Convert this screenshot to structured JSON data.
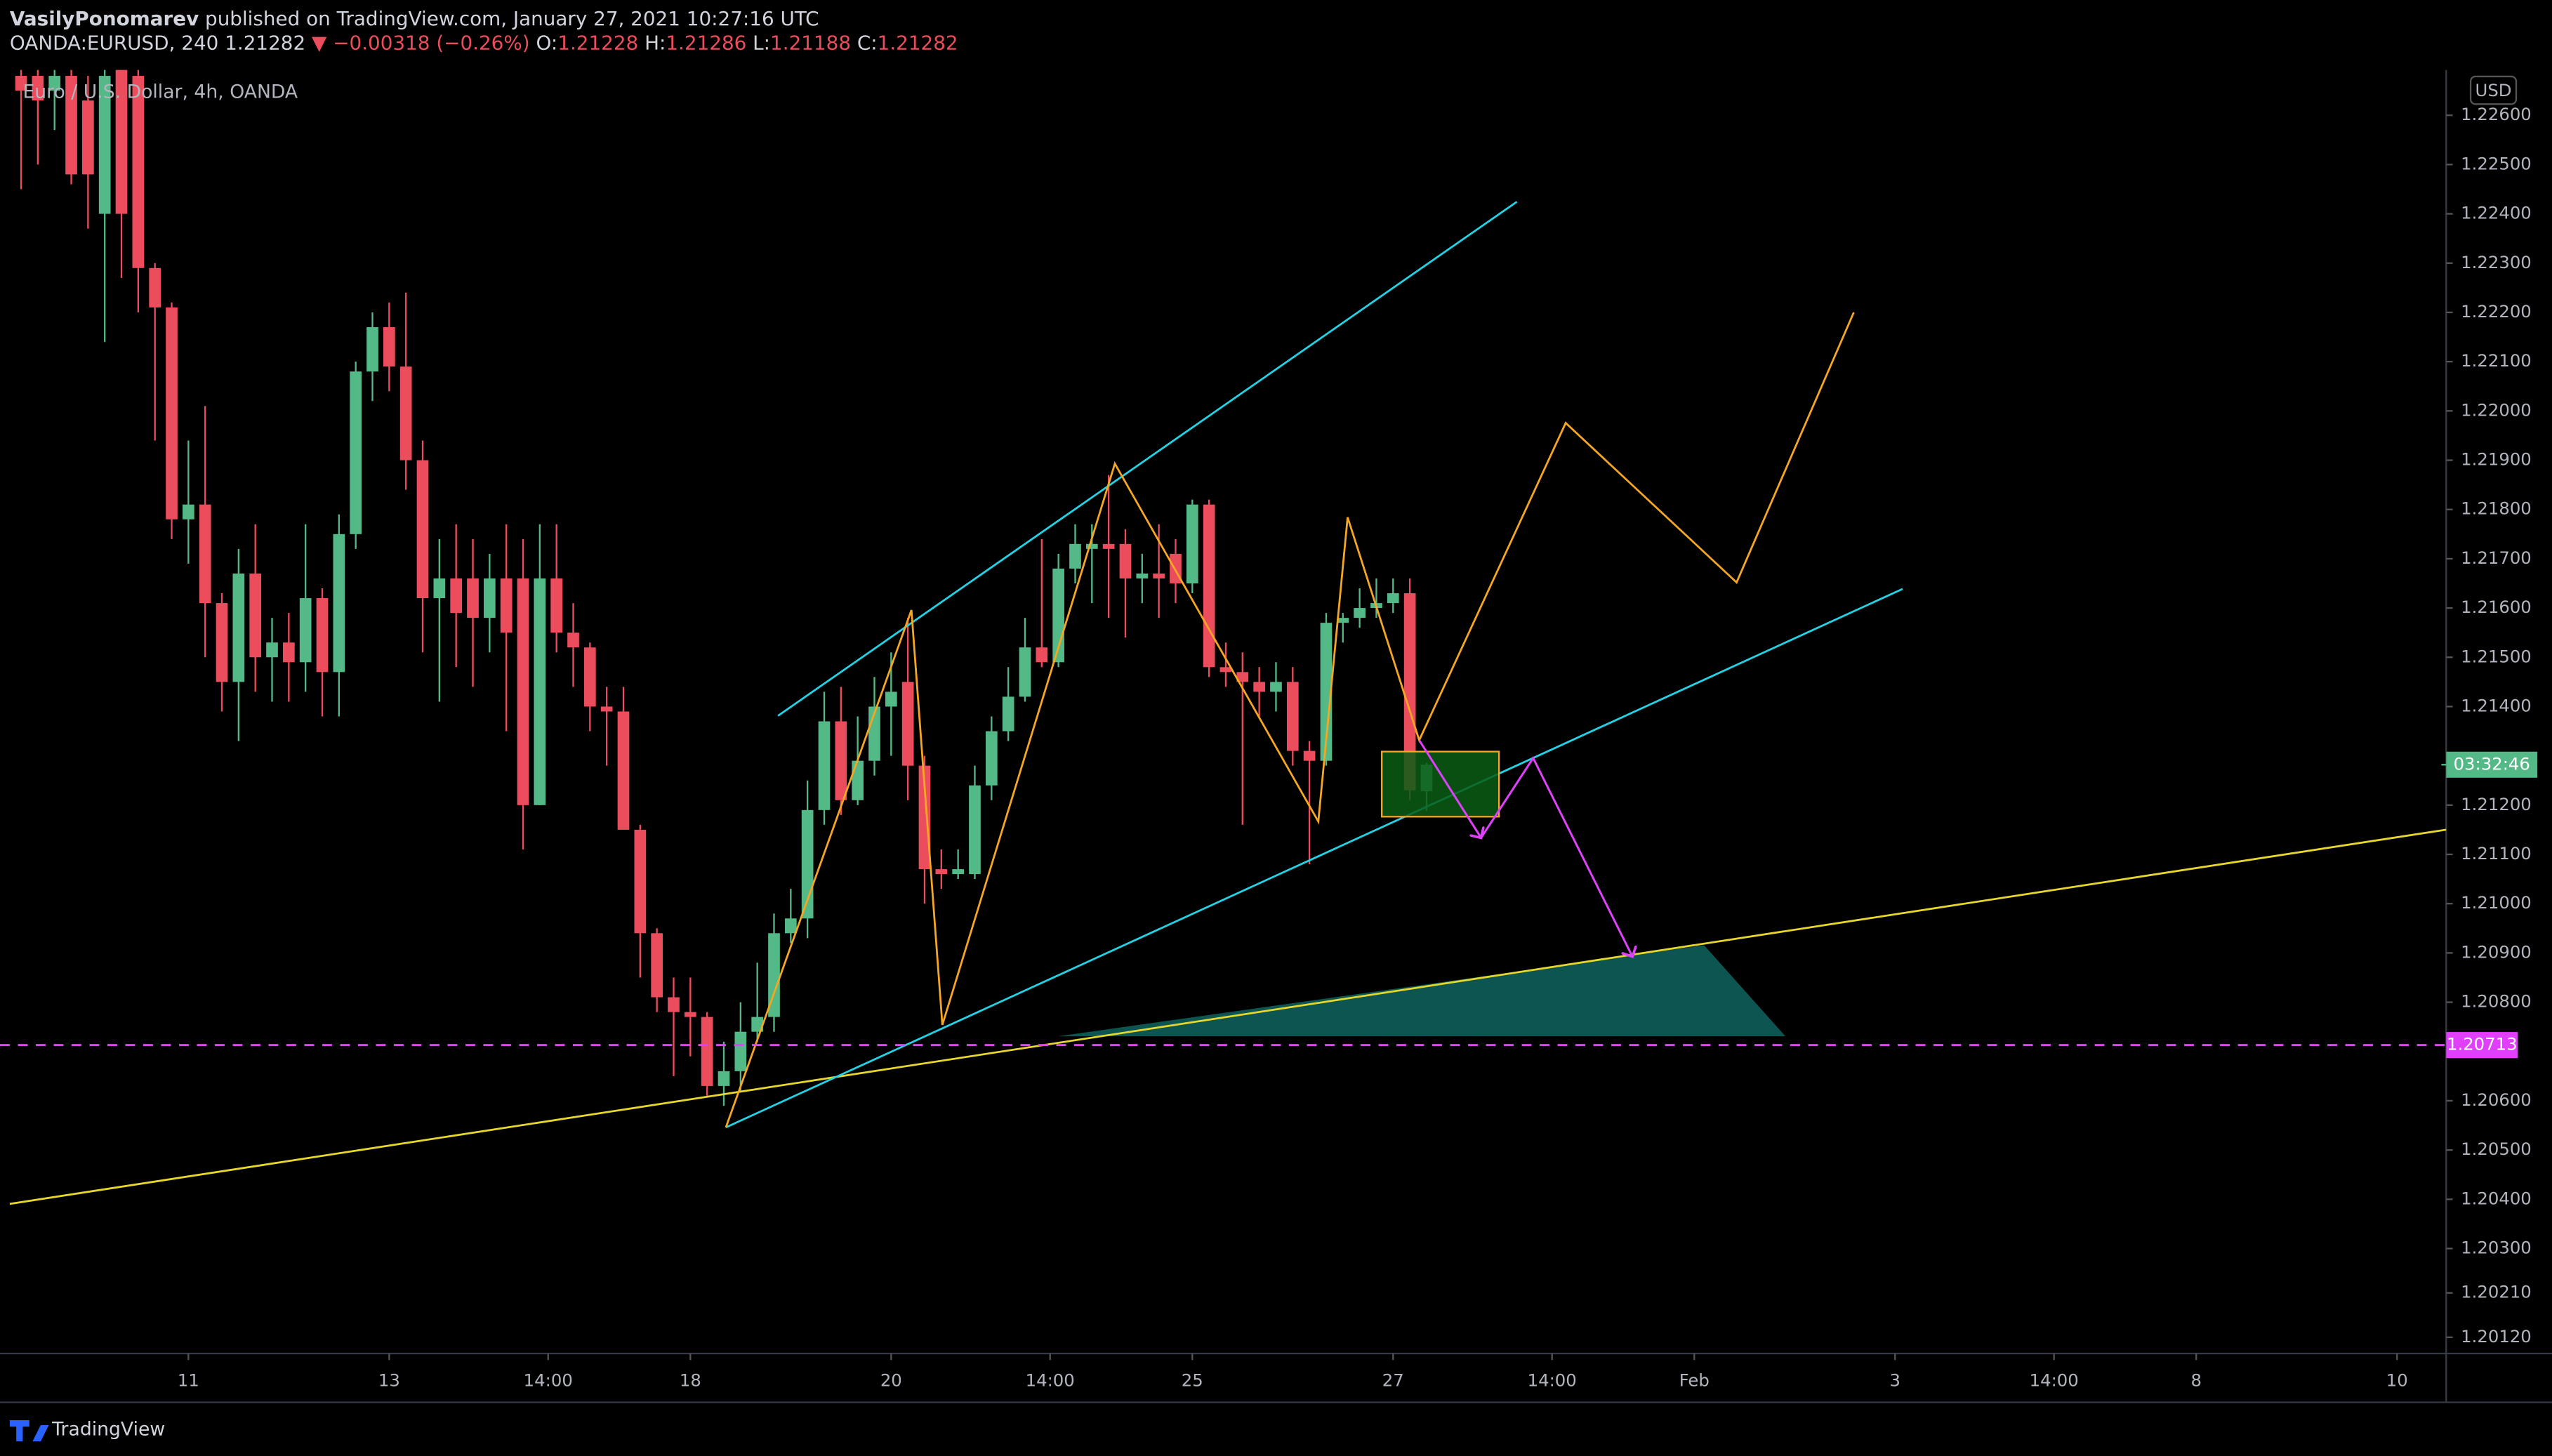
{
  "header": {
    "author": "VasilyPonomarev",
    "published": "published on TradingView.com, January 27, 2021 10:27:16 UTC",
    "symbol": "OANDA:EURUSD, 240",
    "last": 1.21282,
    "change": "▼ −0.00318 (−0.26%)",
    "ohlc_labels": [
      "O:",
      "H:",
      "L:",
      "C:"
    ],
    "ohlc_values": [
      1.21228,
      1.21286,
      1.21188,
      1.21282
    ]
  },
  "footer": {
    "brand": "TradingView"
  },
  "chart_data": {
    "type": "candlestick",
    "title": "Euro / U.S. Dollar, 4h, OANDA",
    "currency": "USD",
    "up_color": "#53b987",
    "down_color": "#eb4d5c",
    "grid": false,
    "open": [
      1.2268,
      1.2268,
      1.2265,
      1.2268,
      1.2263,
      1.224,
      1.227,
      1.2268,
      1.2229,
      1.2221,
      1.2178,
      1.2181,
      1.2161,
      1.2145,
      1.2167,
      1.215,
      1.2153,
      1.2149,
      1.2162,
      1.2147,
      1.2175,
      1.2208,
      1.2217,
      1.2209,
      1.219,
      1.2162,
      1.2166,
      1.2166,
      1.2158,
      1.2166,
      1.2166,
      1.212,
      1.2166,
      1.2155,
      1.2152,
      1.214,
      1.2139,
      1.2115,
      1.2094,
      1.2081,
      1.2078,
      1.2077,
      1.2063,
      1.2066,
      1.2074,
      1.2077,
      1.2094,
      1.2097,
      1.2119,
      1.2137,
      1.2121,
      1.2129,
      1.214,
      1.2145,
      1.2128,
      1.2107,
      1.2106,
      1.2106,
      1.2124,
      1.2135,
      1.2142,
      1.2152,
      1.2149,
      1.2168,
      1.2172,
      1.2173,
      1.2173,
      1.2166,
      1.2167,
      1.2171,
      1.2165,
      1.2181,
      1.2148,
      1.2147,
      1.2145,
      1.2143,
      1.2145,
      1.2131,
      1.2129,
      1.2157,
      1.2158,
      1.216,
      1.2161,
      1.2163,
      1.21228
    ],
    "high": [
      1.227,
      1.227,
      1.227,
      1.227,
      1.2268,
      1.227,
      1.2272,
      1.227,
      1.223,
      1.2222,
      1.2194,
      1.2201,
      1.2163,
      1.2172,
      1.2177,
      1.2158,
      1.2159,
      1.2177,
      1.2164,
      1.2179,
      1.221,
      1.222,
      1.2222,
      1.2224,
      1.2194,
      1.2174,
      1.2177,
      1.2174,
      1.2171,
      1.2177,
      1.2174,
      1.2177,
      1.2177,
      1.2161,
      1.2153,
      1.2144,
      1.2144,
      1.2116,
      1.2095,
      1.2085,
      1.2085,
      1.2078,
      1.2072,
      1.208,
      1.2088,
      1.2098,
      1.2103,
      1.2125,
      1.2143,
      1.2144,
      1.2138,
      1.2146,
      1.2151,
      1.2158,
      1.213,
      1.2111,
      1.2111,
      1.2128,
      1.2138,
      1.2148,
      1.2158,
      1.2174,
      1.2171,
      1.2177,
      1.2177,
      1.2187,
      1.2176,
      1.2171,
      1.2177,
      1.2174,
      1.2182,
      1.2182,
      1.2153,
      1.2151,
      1.2148,
      1.2149,
      1.2148,
      1.2133,
      1.2159,
      1.2159,
      1.2164,
      1.2166,
      1.2166,
      1.2166,
      1.21286
    ],
    "low": [
      1.2245,
      1.225,
      1.2257,
      1.2246,
      1.2237,
      1.2214,
      1.2227,
      1.222,
      1.2194,
      1.2174,
      1.2169,
      1.215,
      1.2139,
      1.2133,
      1.2143,
      1.2141,
      1.2141,
      1.2143,
      1.2138,
      1.2138,
      1.2172,
      1.2202,
      1.2204,
      1.2184,
      1.2151,
      1.2141,
      1.2148,
      1.2144,
      1.2151,
      1.2135,
      1.2111,
      1.212,
      1.2151,
      1.2144,
      1.2135,
      1.2128,
      1.2115,
      1.2085,
      1.2078,
      1.2065,
      1.2069,
      1.2061,
      1.2059,
      1.2062,
      1.2072,
      1.2074,
      1.2092,
      1.2093,
      1.2116,
      1.2118,
      1.212,
      1.2126,
      1.213,
      1.2121,
      1.21,
      1.2103,
      1.2105,
      1.2105,
      1.2121,
      1.2133,
      1.2141,
      1.2148,
      1.2148,
      1.2165,
      1.2161,
      1.2158,
      1.2154,
      1.2161,
      1.2158,
      1.2161,
      1.2163,
      1.2146,
      1.2144,
      1.2116,
      1.2138,
      1.2139,
      1.2128,
      1.2108,
      1.2128,
      1.2153,
      1.2156,
      1.2158,
      1.2159,
      1.2121,
      1.21188
    ],
    "close": [
      1.2265,
      1.2263,
      1.2268,
      1.2248,
      1.2248,
      1.2268,
      1.224,
      1.2229,
      1.2221,
      1.2178,
      1.2181,
      1.2161,
      1.2145,
      1.2167,
      1.215,
      1.2153,
      1.2149,
      1.2162,
      1.2147,
      1.2175,
      1.2208,
      1.2217,
      1.2209,
      1.219,
      1.2162,
      1.2166,
      1.2159,
      1.2158,
      1.2166,
      1.2155,
      1.212,
      1.2166,
      1.2155,
      1.2152,
      1.214,
      1.2139,
      1.2115,
      1.2094,
      1.2081,
      1.2078,
      1.2077,
      1.2063,
      1.2066,
      1.2074,
      1.2077,
      1.2094,
      1.2097,
      1.2119,
      1.2137,
      1.2121,
      1.2129,
      1.214,
      1.2143,
      1.2128,
      1.2107,
      1.2106,
      1.2107,
      1.2124,
      1.2135,
      1.2142,
      1.2152,
      1.2149,
      1.2168,
      1.2173,
      1.2173,
      1.2172,
      1.2166,
      1.2167,
      1.2166,
      1.2165,
      1.2181,
      1.2148,
      1.2147,
      1.2145,
      1.2143,
      1.2145,
      1.2131,
      1.2129,
      1.2157,
      1.2158,
      1.216,
      1.2161,
      1.2163,
      1.2123,
      1.21282
    ],
    "xlim": [
      -1.26,
      144.94
    ],
    "xticks": [
      {
        "value": 10,
        "label": "11"
      },
      {
        "value": 22,
        "label": "13"
      },
      {
        "value": 31.5,
        "label": "14:00"
      },
      {
        "value": 40,
        "label": "18"
      },
      {
        "value": 52,
        "label": "20"
      },
      {
        "value": 61.5,
        "label": "14:00"
      },
      {
        "value": 70,
        "label": "25"
      },
      {
        "value": 82,
        "label": "27"
      },
      {
        "value": 91.5,
        "label": "14:00"
      },
      {
        "value": 100,
        "label": "Feb"
      },
      {
        "value": 112,
        "label": "3"
      },
      {
        "value": 121.5,
        "label": "14:00"
      },
      {
        "value": 130,
        "label": "8"
      },
      {
        "value": 142,
        "label": "10"
      }
    ],
    "ylim": [
      1.20087,
      1.22692
    ],
    "yticks": [
      {
        "value": 1.226,
        "label": "1.22600"
      },
      {
        "value": 1.225,
        "label": "1.22500"
      },
      {
        "value": 1.224,
        "label": "1.22400"
      },
      {
        "value": 1.223,
        "label": "1.22300"
      },
      {
        "value": 1.222,
        "label": "1.22200"
      },
      {
        "value": 1.221,
        "label": "1.22100"
      },
      {
        "value": 1.22,
        "label": "1.22000"
      },
      {
        "value": 1.219,
        "label": "1.21900"
      },
      {
        "value": 1.218,
        "label": "1.21800"
      },
      {
        "value": 1.217,
        "label": "1.21700"
      },
      {
        "value": 1.216,
        "label": "1.21600"
      },
      {
        "value": 1.215,
        "label": "1.21500"
      },
      {
        "value": 1.214,
        "label": "1.21400"
      },
      {
        "value": 1.212,
        "label": "1.21200"
      },
      {
        "value": 1.211,
        "label": "1.21100"
      },
      {
        "value": 1.21,
        "label": "1.21000"
      },
      {
        "value": 1.209,
        "label": "1.20900"
      },
      {
        "value": 1.208,
        "label": "1.20800"
      },
      {
        "value": 1.206,
        "label": "1.20600"
      },
      {
        "value": 1.205,
        "label": "1.20500"
      },
      {
        "value": 1.204,
        "label": "1.20400"
      },
      {
        "value": 1.203,
        "label": "1.20300"
      },
      {
        "value": 1.2021,
        "label": "1.20210"
      },
      {
        "value": 1.2012,
        "label": "1.20120"
      }
    ],
    "hline": 1.20713,
    "hline_color": "#e040fb",
    "countdown": "03:32:46"
  }
}
